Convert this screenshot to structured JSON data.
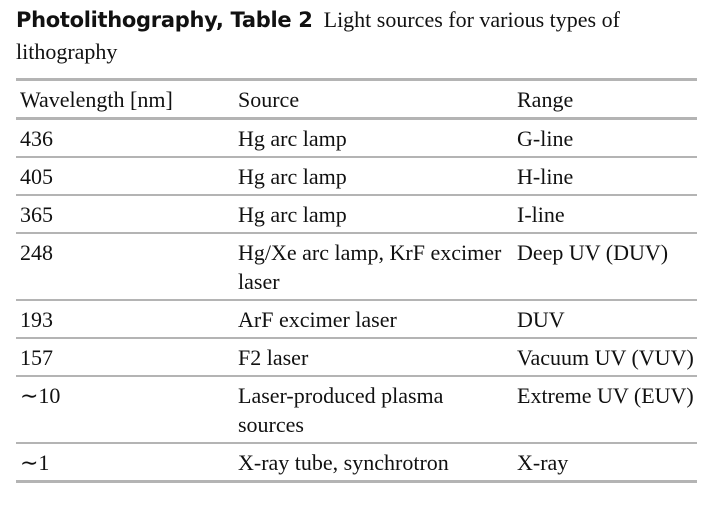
{
  "caption": {
    "label": "Photolithography, Table 2",
    "text": "Light sources for various types of lithography"
  },
  "table": {
    "headers": [
      "Wavelength [nm]",
      "Source",
      "Range"
    ],
    "rows": [
      [
        "436",
        "Hg arc lamp",
        "G-line"
      ],
      [
        "405",
        "Hg arc lamp",
        "H-line"
      ],
      [
        "365",
        "Hg arc lamp",
        "I-line"
      ],
      [
        "248",
        "Hg/Xe arc lamp, KrF excimer laser",
        "Deep UV (DUV)"
      ],
      [
        "193",
        "ArF excimer laser",
        "DUV"
      ],
      [
        "157",
        "F2 laser",
        "Vacuum UV (VUV)"
      ],
      [
        "∼10",
        "Laser-produced plasma sources",
        "Extreme UV (EUV)"
      ],
      [
        "∼1",
        "X-ray tube, synchrotron",
        "X-ray"
      ]
    ]
  },
  "colors": {
    "text": "#111111",
    "rule": "#b4b4b4",
    "background": "#ffffff"
  }
}
